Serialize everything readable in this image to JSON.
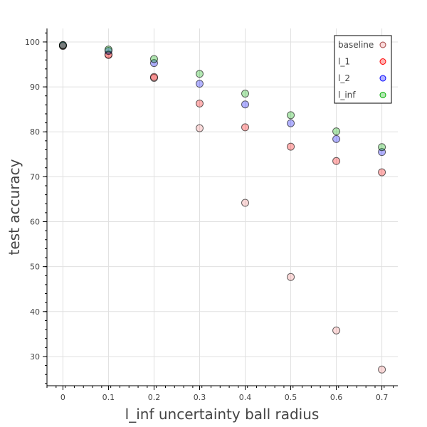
{
  "chart_data": {
    "type": "scatter",
    "xlabel": "l_inf uncertainty ball radius",
    "ylabel": "test accuracy",
    "xlim": [
      -0.035,
      0.735
    ],
    "ylim": [
      23.5,
      103
    ],
    "x_ticks": [
      0,
      0.1,
      0.2,
      0.3,
      0.4,
      0.5,
      0.6,
      0.7
    ],
    "x_tick_labels": [
      "0",
      "0.1",
      "0.2",
      "0.3",
      "0.4",
      "0.5",
      "0.6",
      "0.7"
    ],
    "y_ticks": [
      30,
      40,
      50,
      60,
      70,
      80,
      90,
      100
    ],
    "y_tick_labels": [
      "30",
      "40",
      "50",
      "60",
      "70",
      "80",
      "90",
      "100"
    ],
    "grid": true,
    "legend_position": "top-right",
    "series": [
      {
        "name": "baseline",
        "color": "#f08080",
        "x": [
          0,
          0.1,
          0.2,
          0.3,
          0.4,
          0.5,
          0.6,
          0.7
        ],
        "y": [
          99.1,
          97.2,
          92.0,
          80.8,
          64.2,
          47.7,
          35.8,
          27.1
        ]
      },
      {
        "name": "l_1",
        "color": "#ff0000",
        "x": [
          0,
          0.1,
          0.2,
          0.3,
          0.4,
          0.5,
          0.6,
          0.7
        ],
        "y": [
          99.2,
          97.1,
          92.2,
          86.3,
          81.0,
          76.7,
          73.5,
          71.0
        ]
      },
      {
        "name": "l_2",
        "color": "#0000ff",
        "x": [
          0,
          0.1,
          0.2,
          0.3,
          0.4,
          0.5,
          0.6,
          0.7
        ],
        "y": [
          99.3,
          98.0,
          95.3,
          90.7,
          86.1,
          81.9,
          78.4,
          75.5
        ]
      },
      {
        "name": "l_inf",
        "color": "#00b000",
        "x": [
          0,
          0.1,
          0.2,
          0.3,
          0.4,
          0.5,
          0.6,
          0.7
        ],
        "y": [
          99.3,
          98.3,
          96.2,
          92.9,
          88.5,
          83.7,
          80.1,
          76.6
        ]
      }
    ]
  }
}
